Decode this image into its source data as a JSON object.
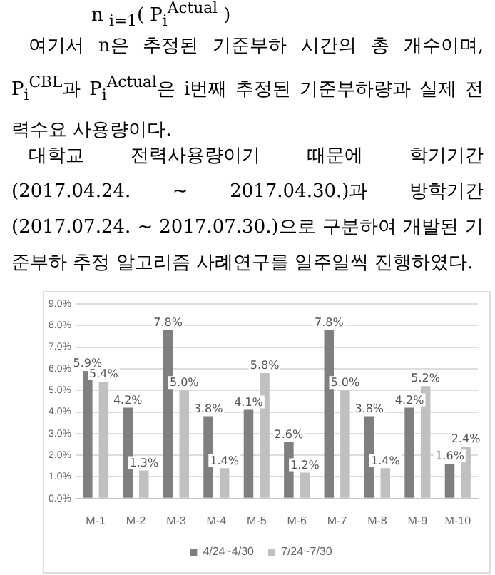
{
  "chart_data": {
    "type": "bar",
    "annotations": [
      "n $_{i=1}$(  P$_{i}$$^{Actual}$  )",
      "여기서 n은 추정된 기준부하 시간의 총 개수이며, P$_{i}$$^{CBL}$과 P$_{i}$$^{Actual}$은 i번째 추정된 기준부하량과 실제 전력수요 사용량이다.",
      "대학교 전력사용량이기 때문에 학기기간 (2017.04.24. ~ 2017.04.30.)과 방학기간 (2017.07.24. ~ 2017.07.30.)으로 구분하여 개발된 기준부하 추정 알고리즘 사례연구를 일주일씩 진행하였다."
    ],
    "categories": [
      "M-1",
      "M-2",
      "M-3",
      "M-4",
      "M-5",
      "M-6",
      "M-7",
      "M-8",
      "M-9",
      "M-10"
    ],
    "series": [
      {
        "name": "4/24~4/30",
        "color": "#7f7f7f",
        "values": [
          5.9,
          4.2,
          7.8,
          3.8,
          4.1,
          2.6,
          7.8,
          3.8,
          4.2,
          1.6
        ],
        "value_labels": [
          "5.9%",
          "4.2%",
          "7.8%",
          "3.8%",
          "4.1%",
          "2.6%",
          "7.8%",
          "3.8%",
          "4.2%",
          "1.6%"
        ]
      },
      {
        "name": "7/24~7/30",
        "color": "#c0c0c0",
        "values": [
          5.4,
          1.3,
          5.0,
          1.4,
          5.8,
          1.2,
          5.0,
          1.4,
          5.2,
          2.4
        ],
        "value_labels": [
          "5.4%",
          "1.3%",
          "5.0%",
          "1.4%",
          "5.8%",
          "1.2%",
          "5.0%",
          "1.4%",
          "5.2%",
          "2.4%"
        ]
      }
    ],
    "ylim": [
      0,
      9
    ],
    "yticks": [
      {
        "value": 0,
        "label": "0.0%"
      },
      {
        "value": 1,
        "label": "1.0%"
      },
      {
        "value": 2,
        "label": "2.0%"
      },
      {
        "value": 3,
        "label": "3.0%"
      },
      {
        "value": 4,
        "label": "4.0%"
      },
      {
        "value": 5,
        "label": "5.0%"
      },
      {
        "value": 6,
        "label": "6.0%"
      },
      {
        "value": 7,
        "label": "7.0%"
      },
      {
        "value": 8,
        "label": "8.0%"
      },
      {
        "value": 9,
        "label": "9.0%"
      }
    ],
    "grid": "y",
    "legend": "bottom"
  }
}
